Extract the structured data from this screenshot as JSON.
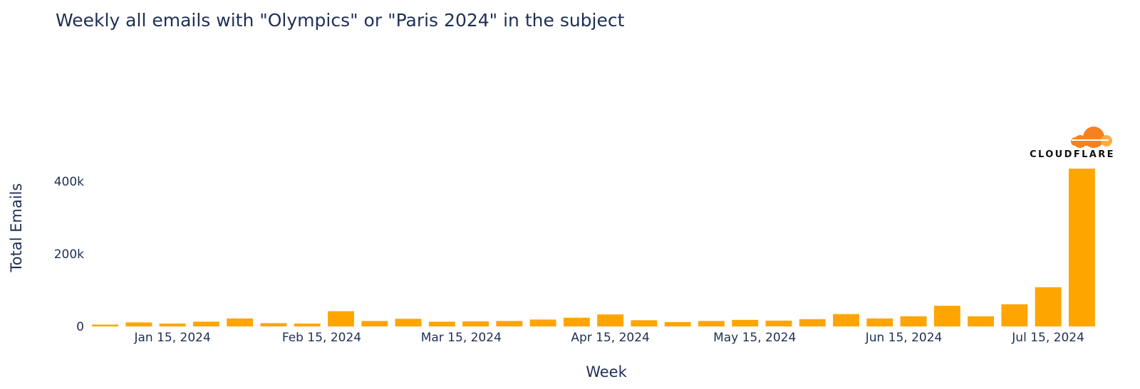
{
  "chart_data": {
    "type": "bar",
    "title": "Weekly all emails with \"Olympics\" or \"Paris 2024\" in the subject",
    "xlabel": "Week",
    "ylabel": "Total Emails",
    "x": [
      "2024-01-01",
      "2024-01-08",
      "2024-01-15",
      "2024-01-22",
      "2024-01-29",
      "2024-02-05",
      "2024-02-12",
      "2024-02-19",
      "2024-02-26",
      "2024-03-04",
      "2024-03-11",
      "2024-03-18",
      "2024-03-25",
      "2024-04-01",
      "2024-04-08",
      "2024-04-15",
      "2024-04-22",
      "2024-04-29",
      "2024-05-06",
      "2024-05-13",
      "2024-05-20",
      "2024-05-27",
      "2024-06-03",
      "2024-06-10",
      "2024-06-17",
      "2024-06-24",
      "2024-07-01",
      "2024-07-08",
      "2024-07-15",
      "2024-07-22"
    ],
    "values": [
      5000,
      11000,
      8000,
      13000,
      22000,
      9000,
      8000,
      42000,
      15000,
      21000,
      13000,
      14000,
      15000,
      19000,
      24000,
      33000,
      17000,
      12000,
      15000,
      18000,
      16000,
      20000,
      34000,
      22000,
      28000,
      57000,
      28000,
      61000,
      108000,
      435000
    ],
    "x_ticks": [
      {
        "date": "2024-01-15",
        "label": "Jan 15, 2024"
      },
      {
        "date": "2024-02-15",
        "label": "Feb 15, 2024"
      },
      {
        "date": "2024-03-15",
        "label": "Mar 15, 2024"
      },
      {
        "date": "2024-04-15",
        "label": "Apr 15, 2024"
      },
      {
        "date": "2024-05-15",
        "label": "May 15, 2024"
      },
      {
        "date": "2024-06-15",
        "label": "Jun 15, 2024"
      },
      {
        "date": "2024-07-15",
        "label": "Jul 15, 2024"
      }
    ],
    "y_ticks": [
      {
        "value": 0,
        "label": "0"
      },
      {
        "value": 200000,
        "label": "200k"
      },
      {
        "value": 400000,
        "label": "400k"
      }
    ],
    "ylim": [
      0,
      450000
    ],
    "grid": false,
    "bar_color": "#ffa500"
  },
  "logo": {
    "text": "CLOUDFLARE",
    "cloud_color_dark": "#f6821f",
    "cloud_color_light": "#fbad41"
  }
}
